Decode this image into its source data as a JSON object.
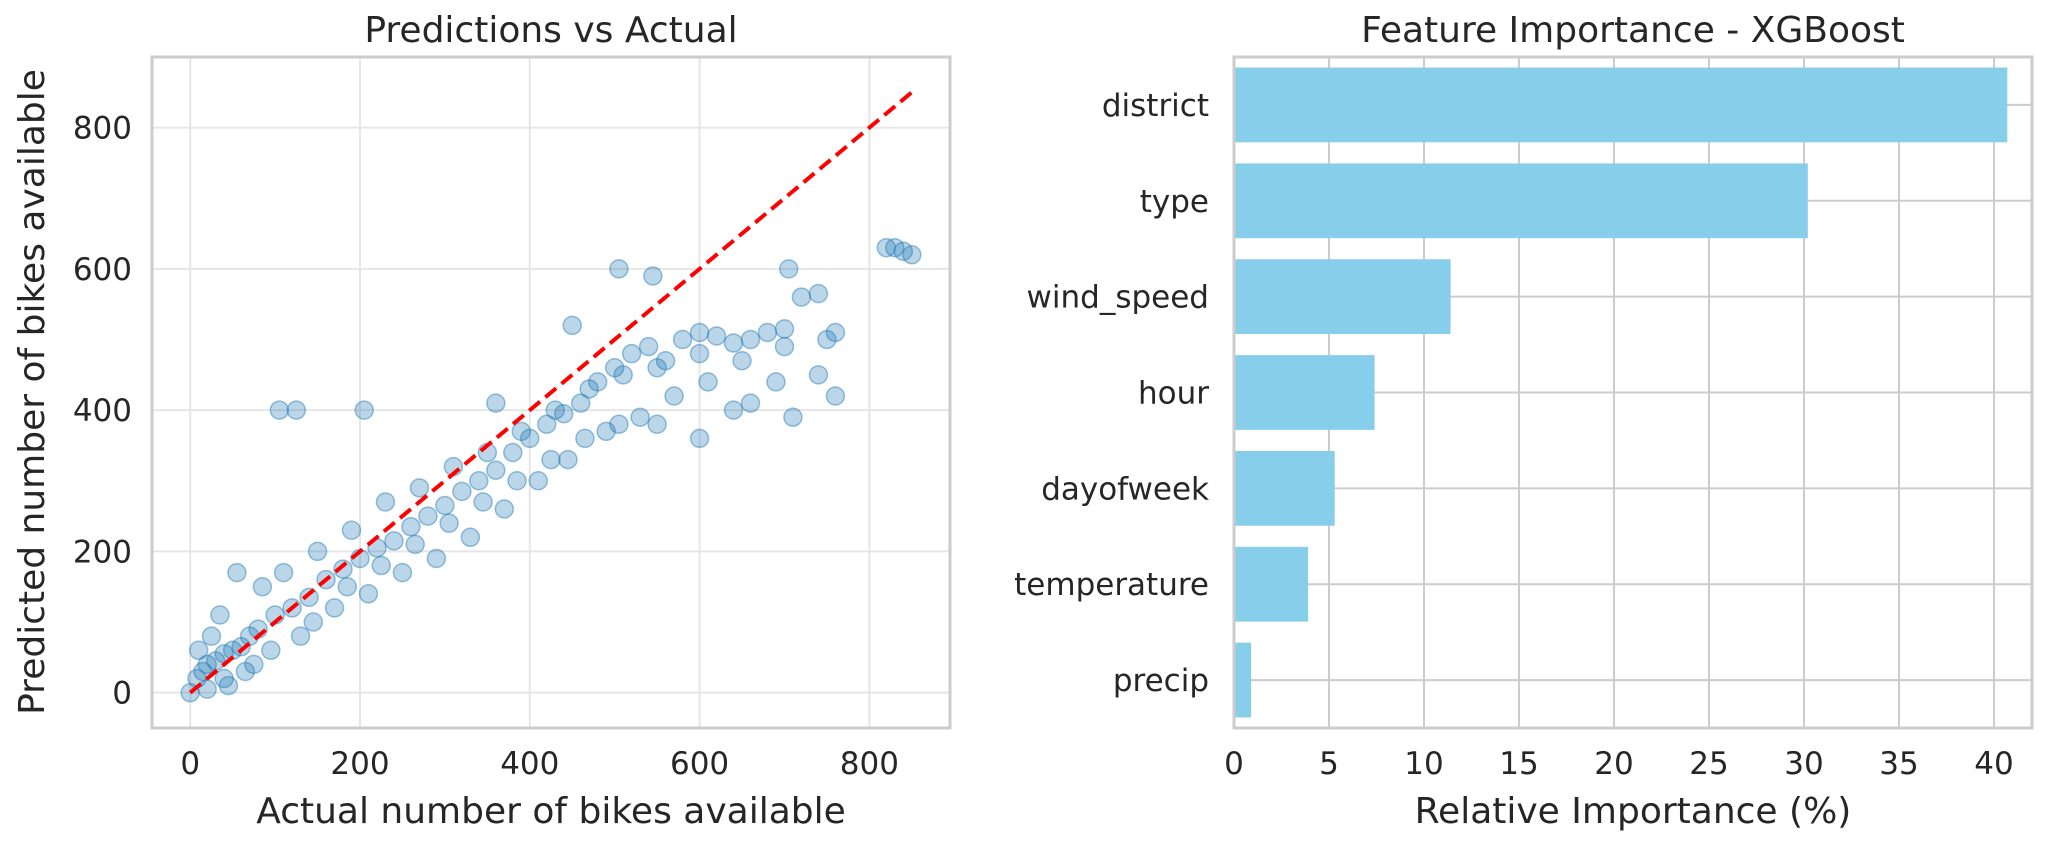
{
  "chart_data": [
    {
      "type": "scatter",
      "title": "Predictions vs Actual",
      "xlabel": "Actual number of bikes available",
      "ylabel": "Predicted number of bikes available",
      "xlim": [
        -45,
        895
      ],
      "ylim": [
        -50,
        900
      ],
      "xticks": [
        0,
        200,
        400,
        600,
        800
      ],
      "yticks": [
        0,
        200,
        400,
        600,
        800
      ],
      "grid": true,
      "point_color": "#1f77b4",
      "point_alpha": 0.3,
      "reference_line": {
        "style": "dashed",
        "color": "#ff0000",
        "x": [
          0,
          850
        ],
        "y": [
          0,
          850
        ]
      },
      "series": [
        {
          "x": [
            0,
            8,
            15,
            20,
            30,
            40,
            50,
            60,
            70,
            80,
            100,
            120,
            140,
            160,
            180,
            200,
            220,
            240,
            260,
            280,
            300,
            320,
            340,
            360,
            380,
            400,
            420,
            440,
            460,
            480,
            500,
            520,
            540,
            560,
            580,
            600,
            620,
            640,
            660,
            680,
            700,
            720,
            740,
            760,
            820,
            830,
            840,
            850,
            105,
            125,
            205,
            360,
            450,
            505,
            545,
            705,
            10,
            25,
            55,
            35,
            85,
            110,
            150,
            190,
            230,
            270,
            310,
            350,
            390,
            430,
            470,
            510,
            550,
            600,
            650,
            700,
            750,
            40,
            75,
            130,
            170,
            210,
            250,
            290,
            330,
            370,
            410,
            445,
            490,
            530,
            570,
            610,
            660,
            710,
            760,
            20,
            45,
            65,
            95,
            145,
            185,
            225,
            265,
            305,
            345,
            385,
            425,
            465,
            505,
            550,
            600,
            640,
            690,
            740
          ],
          "y": [
            0,
            20,
            30,
            40,
            45,
            55,
            60,
            65,
            80,
            90,
            110,
            120,
            135,
            160,
            175,
            190,
            205,
            215,
            235,
            250,
            265,
            285,
            300,
            315,
            340,
            360,
            380,
            395,
            410,
            440,
            460,
            480,
            490,
            470,
            500,
            510,
            505,
            495,
            500,
            510,
            515,
            560,
            565,
            510,
            630,
            630,
            625,
            620,
            400,
            400,
            400,
            410,
            520,
            600,
            590,
            600,
            60,
            80,
            170,
            110,
            150,
            170,
            200,
            230,
            270,
            290,
            320,
            340,
            370,
            400,
            430,
            450,
            460,
            480,
            470,
            490,
            500,
            20,
            40,
            80,
            120,
            140,
            170,
            190,
            220,
            260,
            300,
            330,
            370,
            390,
            420,
            440,
            410,
            390,
            420,
            5,
            10,
            30,
            60,
            100,
            150,
            180,
            210,
            240,
            270,
            300,
            330,
            360,
            380,
            380,
            360,
            400,
            440,
            450
          ]
        }
      ]
    },
    {
      "type": "bar",
      "orientation": "horizontal",
      "title": "Feature Importance - XGBoost",
      "xlabel": "Relative Importance (%)",
      "ylabel": "",
      "xlim": [
        0,
        42
      ],
      "xticks": [
        0,
        5,
        10,
        15,
        20,
        25,
        30,
        35,
        40
      ],
      "grid": true,
      "bar_color": "#87ceeb",
      "categories": [
        "district",
        "type",
        "wind_speed",
        "hour",
        "dayofweek",
        "temperature",
        "precip"
      ],
      "values": [
        40.7,
        30.2,
        11.4,
        7.4,
        5.3,
        3.9,
        0.9
      ]
    }
  ]
}
